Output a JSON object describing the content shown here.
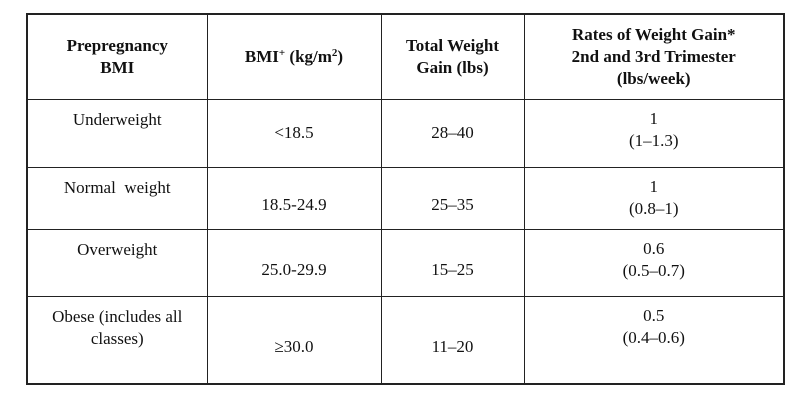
{
  "table": {
    "headers": {
      "col1": [
        "Prepregnancy",
        "BMI"
      ],
      "col2": {
        "text": "BMI",
        "superscript": "+",
        "unit_pre": " (kg/m",
        "unit_sup": "2",
        "unit_post": ")"
      },
      "col3": [
        "Total Weight",
        "Gain (lbs)"
      ],
      "col4": [
        "Rates of Weight Gain*",
        "2nd and 3rd Trimester",
        "(lbs/week)"
      ]
    },
    "rows": [
      {
        "category": [
          "Underweight"
        ],
        "bmi": "<18.5",
        "total_gain": "28–40",
        "rate": "1",
        "rate_range": "(1–1.3)"
      },
      {
        "category": [
          "Normal  weight"
        ],
        "bmi": "18.5-24.9",
        "total_gain": "25–35",
        "rate": "1",
        "rate_range": "(0.8–1)"
      },
      {
        "category": [
          "Overweight"
        ],
        "bmi": "25.0-29.9",
        "total_gain": "15–25",
        "rate": "0.6",
        "rate_range": "(0.5–0.7)"
      },
      {
        "category": [
          "Obese (includes all",
          "classes)"
        ],
        "bmi": "≥30.0",
        "total_gain": "11–20",
        "rate": "0.5",
        "rate_range": "(0.4–0.6)"
      }
    ]
  }
}
